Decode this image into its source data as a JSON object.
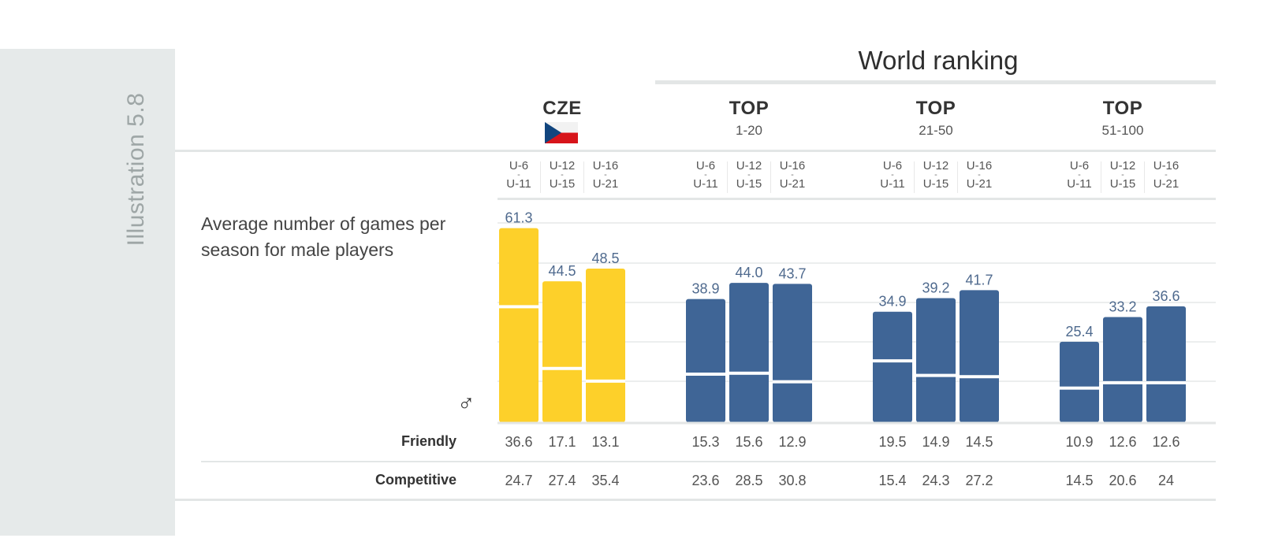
{
  "side_label": "Illustration 5.8",
  "world_ranking_title": "World ranking",
  "groups": [
    {
      "title": "CZE",
      "subtitle": ""
    },
    {
      "title": "TOP",
      "subtitle": "1-20"
    },
    {
      "title": "TOP",
      "subtitle": "21-50"
    },
    {
      "title": "TOP",
      "subtitle": "51-100"
    }
  ],
  "age_categories": [
    {
      "top": "U-6",
      "mid": "-",
      "bottom": "U-11"
    },
    {
      "top": "U-12",
      "mid": "-",
      "bottom": "U-15"
    },
    {
      "top": "U-16",
      "mid": "-",
      "bottom": "U-21"
    }
  ],
  "y_label": "Average number of games per season for male players",
  "male_symbol": "♂",
  "row_labels": {
    "friendly": "Friendly",
    "competitive": "Competitive"
  },
  "colors": {
    "cze": "#fdd02a",
    "top": "#3f6596",
    "total_label": "#4f6a8e",
    "divider": "#ffffff"
  },
  "chart_data": {
    "type": "bar",
    "stacked": true,
    "categories": [
      "CZE",
      "TOP 1-20",
      "TOP 21-50",
      "TOP 51-100"
    ],
    "subcategories": [
      "U-6 - U-11",
      "U-12 - U-15",
      "U-16 - U-21"
    ],
    "series": [
      {
        "name": "Friendly",
        "values": [
          [
            36.6,
            17.1,
            13.1
          ],
          [
            15.3,
            15.6,
            12.9
          ],
          [
            19.5,
            14.9,
            14.5
          ],
          [
            10.9,
            12.6,
            12.6
          ]
        ]
      },
      {
        "name": "Competitive",
        "values": [
          [
            24.7,
            27.4,
            35.4
          ],
          [
            23.6,
            28.5,
            30.8
          ],
          [
            15.4,
            24.3,
            27.2
          ],
          [
            14.5,
            20.6,
            24
          ]
        ]
      }
    ],
    "totals": [
      [
        61.3,
        44.5,
        48.5
      ],
      [
        38.9,
        44.0,
        43.7
      ],
      [
        34.9,
        39.2,
        41.7
      ],
      [
        25.4,
        33.2,
        36.6
      ]
    ],
    "table": {
      "friendly": [
        [
          "36.6",
          "17.1",
          "13.1"
        ],
        [
          "15.3",
          "15.6",
          "12.9"
        ],
        [
          "19.5",
          "14.9",
          "14.5"
        ],
        [
          "10.9",
          "12.6",
          "12.6"
        ]
      ],
      "competitive": [
        [
          "24.7",
          "27.4",
          "35.4"
        ],
        [
          "23.6",
          "28.5",
          "30.8"
        ],
        [
          "15.4",
          "24.3",
          "27.2"
        ],
        [
          "14.5",
          "20.6",
          "24"
        ]
      ],
      "totals": [
        [
          "61.3",
          "44.5",
          "48.5"
        ],
        [
          "38.9",
          "44.0",
          "43.7"
        ],
        [
          "34.9",
          "39.2",
          "41.7"
        ],
        [
          "25.4",
          "33.2",
          "36.6"
        ]
      ]
    },
    "ylim": [
      0,
      62
    ],
    "grid": true
  }
}
